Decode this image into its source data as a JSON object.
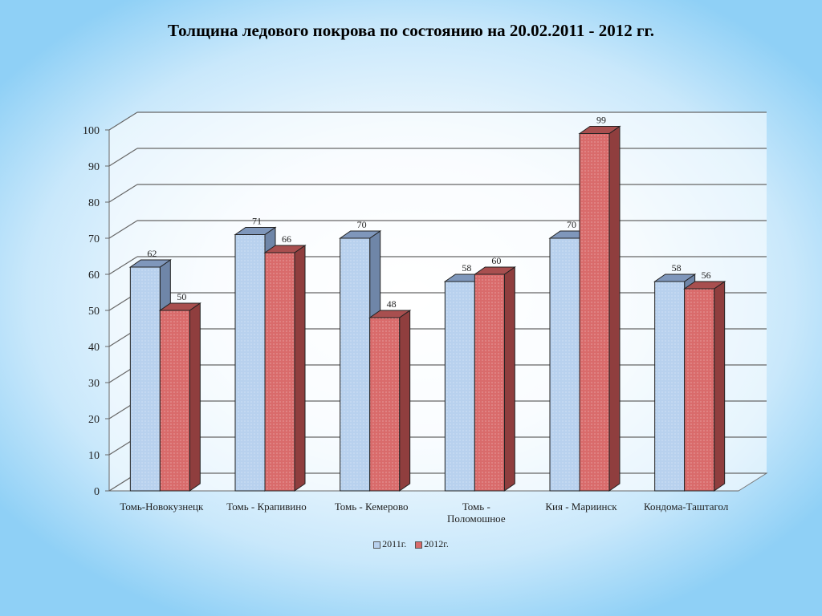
{
  "title": "Толщина ледового покрова по состоянию на 20.02.2011 - 2012 гг.",
  "chart_data": {
    "type": "bar",
    "title": "Толщина ледового покрова по состоянию на 20.02.2011 - 2012 гг.",
    "categories": [
      [
        "Томь-Новокузнецк"
      ],
      [
        "Томь - Крапивино"
      ],
      [
        "Томь - Кемерово"
      ],
      [
        "Томь -",
        "Поломошное"
      ],
      [
        "Кия - Мариинск"
      ],
      [
        "Кондома-Таштагол"
      ]
    ],
    "series": [
      {
        "name": "2011г.",
        "values": [
          62,
          71,
          70,
          58,
          70,
          58
        ],
        "color": "#b8d1ee"
      },
      {
        "name": "2012г.",
        "values": [
          50,
          66,
          48,
          60,
          99,
          56
        ],
        "color": "#d96b6b"
      }
    ],
    "ylim": [
      0,
      100
    ],
    "yticks": [
      0,
      10,
      20,
      30,
      40,
      50,
      60,
      70,
      80,
      90,
      100
    ],
    "xlabel": "",
    "ylabel": "",
    "grid": true,
    "legend": "bottom"
  }
}
